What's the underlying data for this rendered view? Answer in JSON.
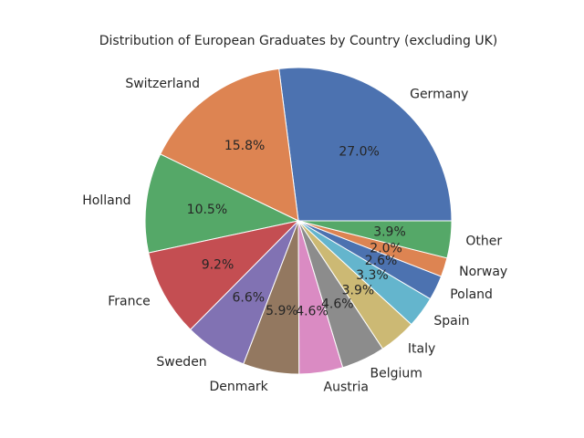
{
  "chart_data": {
    "type": "pie",
    "title": "Distribution of European Graduates by Country (excluding UK)",
    "categories": [
      "Germany",
      "Switzerland",
      "Holland",
      "France",
      "Sweden",
      "Denmark",
      "Austria",
      "Belgium",
      "Italy",
      "Spain",
      "Poland",
      "Norway",
      "Other"
    ],
    "values": [
      27.0,
      15.8,
      10.5,
      9.2,
      6.6,
      5.9,
      4.6,
      4.6,
      3.9,
      3.3,
      2.6,
      2.0,
      3.9
    ],
    "value_labels": [
      "27.0%",
      "15.8%",
      "10.5%",
      "9.2%",
      "6.6%",
      "5.9%",
      "4.6%",
      "4.6%",
      "3.9%",
      "3.3%",
      "2.6%",
      "2.0%",
      "3.9%"
    ],
    "colors": [
      "#4c72b0",
      "#dd8452",
      "#55a868",
      "#c44e52",
      "#8172b3",
      "#937860",
      "#da8bc3",
      "#8c8c8c",
      "#ccb974",
      "#64b5cd",
      "#4c72b0",
      "#dd8452",
      "#55a868"
    ],
    "start_angle_deg": 0,
    "direction": "counterclockwise",
    "legend": "none"
  }
}
